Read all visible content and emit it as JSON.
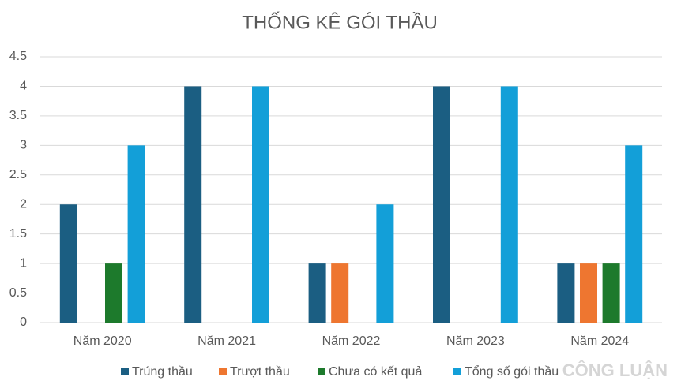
{
  "chart_data": {
    "type": "bar",
    "title": "THỐNG KÊ GÓI THẦU",
    "categories": [
      "Năm 2020",
      "Năm 2021",
      "Năm 2022",
      "Năm 2023",
      "Năm 2024"
    ],
    "series": [
      {
        "name": "Trúng thầu",
        "color": "#1b5e82",
        "values": [
          2,
          4,
          1,
          4,
          1
        ]
      },
      {
        "name": "Trượt thầu",
        "color": "#ee7630",
        "values": [
          0,
          0,
          1,
          0,
          1
        ]
      },
      {
        "name": "Chưa có kết quả",
        "color": "#1d7a2c",
        "values": [
          1,
          0,
          0,
          0,
          1
        ]
      },
      {
        "name": "Tổng số gói thầu",
        "color": "#139fd8",
        "values": [
          3,
          4,
          2,
          4,
          3
        ]
      }
    ],
    "ylim": [
      0,
      4.5
    ],
    "yticks": [
      0,
      0.5,
      1,
      1.5,
      2,
      2.5,
      3,
      3.5,
      4,
      4.5
    ],
    "grid": true,
    "legend": "bottom",
    "watermark": "CÔNG LUẬN"
  }
}
